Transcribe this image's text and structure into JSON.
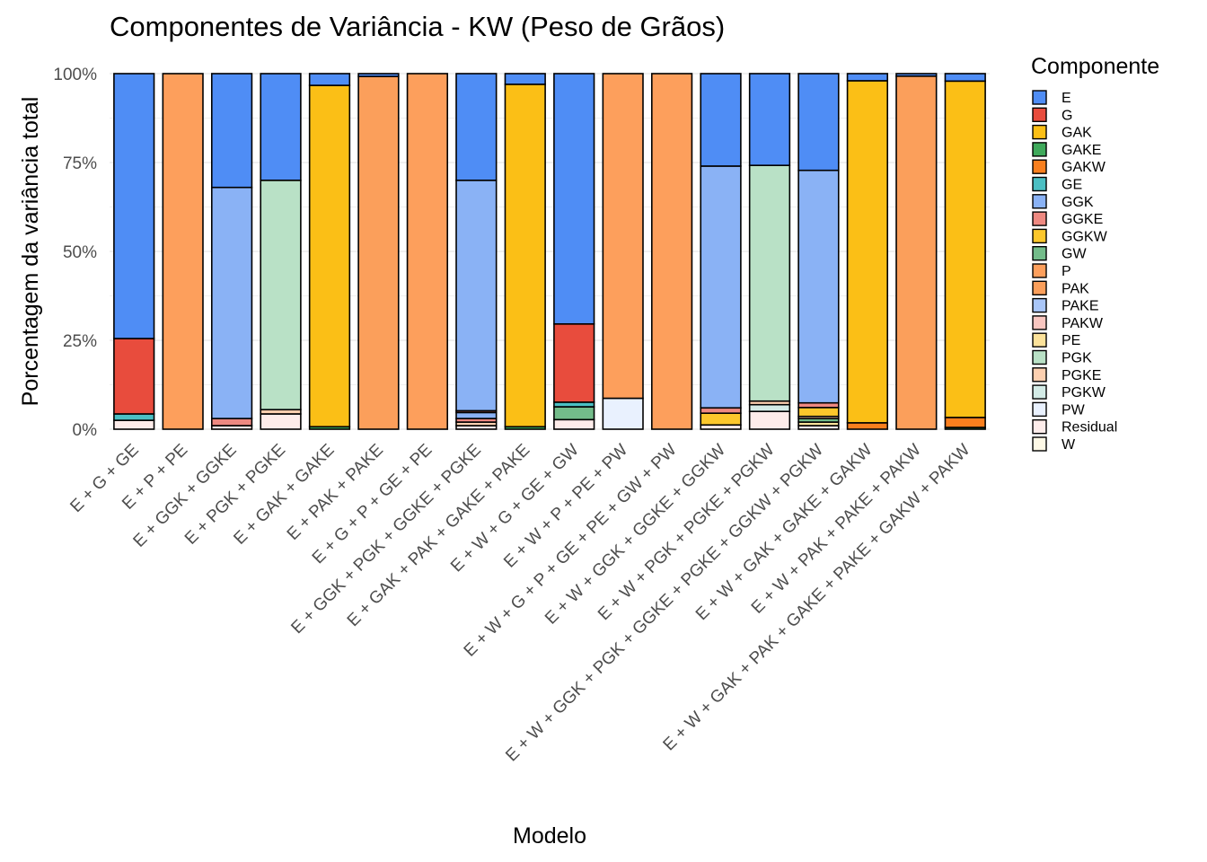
{
  "chart_data": {
    "type": "bar",
    "stacked": "percent",
    "title": "Componentes de Variância - KW (Peso de Grãos)",
    "xlabel": "Modelo",
    "ylabel": "Porcentagem da variância total",
    "ylim": [
      0,
      100
    ],
    "yticks": [
      "0%",
      "25%",
      "50%",
      "75%",
      "100%"
    ],
    "grid": true,
    "legend": {
      "title": "Componente",
      "position": "right"
    },
    "components": [
      {
        "name": "E",
        "color": "#4F8DF5"
      },
      {
        "name": "G",
        "color": "#E84C3D"
      },
      {
        "name": "GAK",
        "color": "#FBBF16"
      },
      {
        "name": "GAKE",
        "color": "#3FA95B"
      },
      {
        "name": "GAKW",
        "color": "#F97F1E"
      },
      {
        "name": "GE",
        "color": "#4BBFC3"
      },
      {
        "name": "GGK",
        "color": "#8AB2F5"
      },
      {
        "name": "GGKE",
        "color": "#EE8981"
      },
      {
        "name": "GGKW",
        "color": "#FCC72C"
      },
      {
        "name": "GW",
        "color": "#73BC8A"
      },
      {
        "name": "P",
        "color": "#FD9F5C"
      },
      {
        "name": "PAK",
        "color": "#FB9F5B"
      },
      {
        "name": "PAKE",
        "color": "#A9C6F8"
      },
      {
        "name": "PAKW",
        "color": "#F9C6C0"
      },
      {
        "name": "PE",
        "color": "#FCE29A"
      },
      {
        "name": "PGK",
        "color": "#B9E1C6"
      },
      {
        "name": "PGKE",
        "color": "#FDD0B0"
      },
      {
        "name": "PGKW",
        "color": "#D3EBE6"
      },
      {
        "name": "PW",
        "color": "#E9F1FE"
      },
      {
        "name": "Residual",
        "color": "#FDECEA"
      },
      {
        "name": "W",
        "color": "#FEF9E6"
      }
    ],
    "categories": [
      "E + G + GE",
      "E + P + PE",
      "E + GGK + GGKE",
      "E + PGK + PGKE",
      "E + GAK + GAKE",
      "E + PAK + PAKE",
      "E + G + P + GE + PE",
      "E + GGK + PGK + GGKE + PGKE",
      "E + GAK + PAK + GAKE + PAKE",
      "E + W + G + GE + GW",
      "E + W + P + PE + PW",
      "E + W + G + P + GE + PE + GW + PW",
      "E + W + GGK + GGKE + GGKW",
      "E + W + PGK + PGKE + PGKW",
      "E + W + GGK + PGK + GGKE + PGKE + GGKW + PGKW",
      "E + W + GAK + GAKE + GAKW",
      "E + W + PAK + PAKE + PAKW",
      "E + W + GAK + PAK + GAKE + PAKE + GAKW + PAKW"
    ],
    "bars": [
      [
        {
          "c": "Residual",
          "v": 2.5
        },
        {
          "c": "GE",
          "v": 1.8
        },
        {
          "c": "G",
          "v": 21.2
        },
        {
          "c": "E",
          "v": 74.5
        }
      ],
      [
        {
          "c": "P",
          "v": 100
        }
      ],
      [
        {
          "c": "Residual",
          "v": 1.0
        },
        {
          "c": "GGKE",
          "v": 2.0
        },
        {
          "c": "GGK",
          "v": 65.0
        },
        {
          "c": "E",
          "v": 32.0
        }
      ],
      [
        {
          "c": "Residual",
          "v": 4.3
        },
        {
          "c": "PGKE",
          "v": 1.2
        },
        {
          "c": "PGK",
          "v": 64.5
        },
        {
          "c": "E",
          "v": 30.0
        }
      ],
      [
        {
          "c": "GAKE",
          "v": 0.7
        },
        {
          "c": "GAK",
          "v": 96.0
        },
        {
          "c": "E",
          "v": 3.3
        }
      ],
      [
        {
          "c": "PAK",
          "v": 99.2
        },
        {
          "c": "E",
          "v": 0.8
        }
      ],
      [
        {
          "c": "P",
          "v": 100
        }
      ],
      [
        {
          "c": "Residual",
          "v": 1.0
        },
        {
          "c": "PGKE",
          "v": 1.0
        },
        {
          "c": "GGKE",
          "v": 1.0
        },
        {
          "c": "GGK",
          "v": 1.7
        },
        {
          "c": "GGKE",
          "v": 0.5
        },
        {
          "c": "GGK",
          "v": 64.8
        },
        {
          "c": "E",
          "v": 30.0
        }
      ],
      [
        {
          "c": "GAKE",
          "v": 0.7
        },
        {
          "c": "GAK",
          "v": 96.3
        },
        {
          "c": "E",
          "v": 3.0
        }
      ],
      [
        {
          "c": "Residual",
          "v": 2.7
        },
        {
          "c": "GW",
          "v": 3.6
        },
        {
          "c": "GE",
          "v": 1.3
        },
        {
          "c": "G",
          "v": 22.0
        },
        {
          "c": "E",
          "v": 70.4
        }
      ],
      [
        {
          "c": "PW",
          "v": 8.7
        },
        {
          "c": "P",
          "v": 91.3
        }
      ],
      [
        {
          "c": "P",
          "v": 100
        }
      ],
      [
        {
          "c": "Residual",
          "v": 1.2
        },
        {
          "c": "GGKW",
          "v": 3.3
        },
        {
          "c": "GGKE",
          "v": 1.5
        },
        {
          "c": "GGK",
          "v": 68.0
        },
        {
          "c": "E",
          "v": 26.0
        }
      ],
      [
        {
          "c": "Residual",
          "v": 5.0
        },
        {
          "c": "PGKW",
          "v": 1.9
        },
        {
          "c": "PGKE",
          "v": 1.0
        },
        {
          "c": "PGK",
          "v": 66.3
        },
        {
          "c": "E",
          "v": 25.8
        }
      ],
      [
        {
          "c": "Residual",
          "v": 1.0
        },
        {
          "c": "PE",
          "v": 1.0
        },
        {
          "c": "GW",
          "v": 1.0
        },
        {
          "c": "PGKE",
          "v": 0.6
        },
        {
          "c": "GGKW",
          "v": 2.5
        },
        {
          "c": "GGKE",
          "v": 1.3
        },
        {
          "c": "GGK",
          "v": 65.4
        },
        {
          "c": "E",
          "v": 27.2
        }
      ],
      [
        {
          "c": "GAKW",
          "v": 1.8
        },
        {
          "c": "GAK",
          "v": 96.2
        },
        {
          "c": "E",
          "v": 2.0
        }
      ],
      [
        {
          "c": "PAK",
          "v": 99.3
        },
        {
          "c": "E",
          "v": 0.7
        }
      ],
      [
        {
          "c": "GAKE",
          "v": 0.5
        },
        {
          "c": "GAKW",
          "v": 2.8
        },
        {
          "c": "GAK",
          "v": 94.6
        },
        {
          "c": "E",
          "v": 2.1
        }
      ]
    ]
  }
}
